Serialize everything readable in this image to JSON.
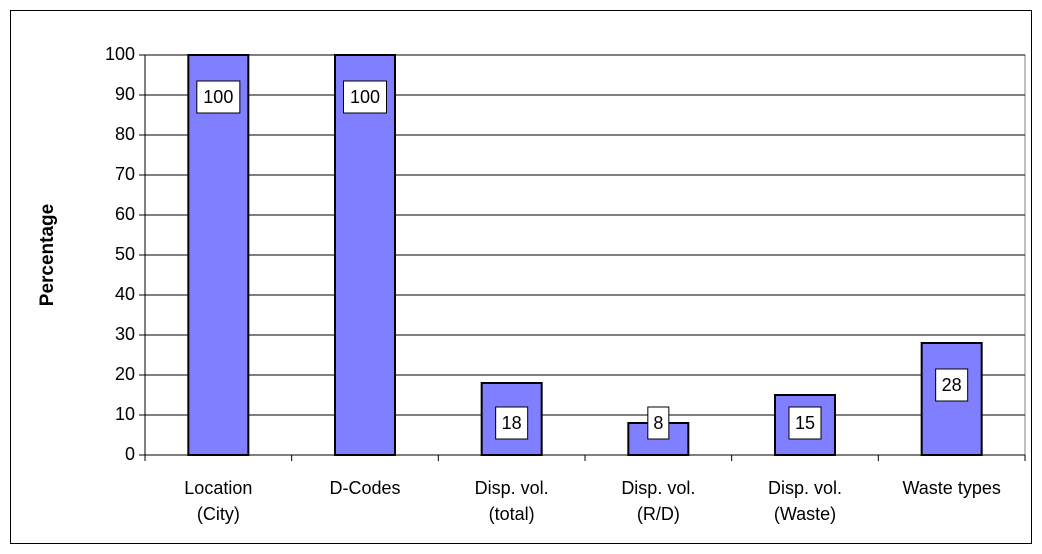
{
  "chart_data": {
    "type": "bar",
    "y_label": "Percentage",
    "categories": [
      [
        "Location",
        "(City)"
      ],
      [
        "D-Codes"
      ],
      [
        "Disp. vol.",
        "(total)"
      ],
      [
        "Disp. vol.",
        "(R/D)"
      ],
      [
        "Disp. vol.",
        "(Waste)"
      ],
      [
        "Waste types"
      ]
    ],
    "values": [
      100,
      100,
      18,
      8,
      15,
      28
    ],
    "color": "#7f7fff",
    "ylim": [
      0,
      100
    ],
    "yticks": [
      0,
      10,
      20,
      30,
      40,
      50,
      60,
      70,
      80,
      90,
      100
    ],
    "grid": true,
    "data_labels": true
  }
}
